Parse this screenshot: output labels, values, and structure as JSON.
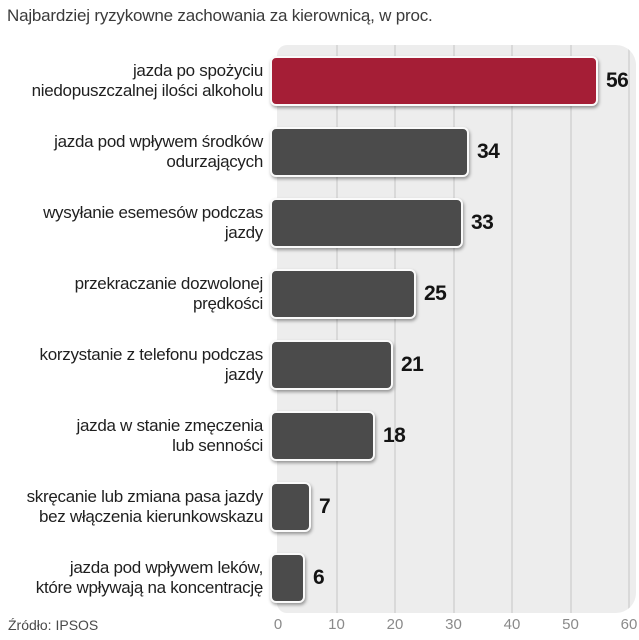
{
  "chart_data": {
    "type": "bar",
    "orientation": "horizontal",
    "title": "Najbardziej ryzykowne zachowania za kierownicą, w proc.",
    "source": "Źródło: IPSOS",
    "xlabel": "",
    "ylabel": "",
    "xlim": [
      0,
      60
    ],
    "x_ticks": [
      0,
      10,
      20,
      30,
      40,
      50,
      60
    ],
    "grid": true,
    "legend": "none",
    "categories": [
      "jazda po spożyciu niedopuszczalnej ilości alkoholu",
      "jazda pod wpływem środków odurzających",
      "wysyłanie esemesów podczas jazdy",
      "przekraczanie dozwolonej prędkości",
      "korzystanie z telefonu podczas jazdy",
      "jazda w stanie zmęczenia lub senności",
      "skręcanie lub zmiana pasa jazdy bez włączenia kierunkowskazu",
      "jazda pod wpływem leków, które wpływają na koncentrację"
    ],
    "values": [
      56,
      34,
      33,
      25,
      21,
      18,
      7,
      6
    ],
    "bars": [
      {
        "label_lines": [
          "jazda po spożyciu",
          "niedopuszczalnej ilości alkoholu"
        ],
        "value": 56,
        "color": "#a51e36"
      },
      {
        "label_lines": [
          "jazda pod wpływem środków",
          "odurzających"
        ],
        "value": 34,
        "color": "#4b4b4b"
      },
      {
        "label_lines": [
          "wysyłanie esemesów podczas",
          "jazdy"
        ],
        "value": 33,
        "color": "#4b4b4b"
      },
      {
        "label_lines": [
          "przekraczanie dozwolonej",
          "prędkości"
        ],
        "value": 25,
        "color": "#4b4b4b"
      },
      {
        "label_lines": [
          "korzystanie z telefonu podczas",
          "jazdy"
        ],
        "value": 21,
        "color": "#4b4b4b"
      },
      {
        "label_lines": [
          "jazda w stanie zmęczenia",
          "lub senności"
        ],
        "value": 18,
        "color": "#4b4b4b"
      },
      {
        "label_lines": [
          "skręcanie lub zmiana pasa jazdy",
          "bez włączenia kierunkowskazu"
        ],
        "value": 7,
        "color": "#4b4b4b"
      },
      {
        "label_lines": [
          "jazda pod wpływem leków,",
          "które wpływają na koncentrację"
        ],
        "value": 6,
        "color": "#4b4b4b"
      }
    ],
    "colors": {
      "highlight_bar": "#a51e36",
      "default_bar": "#4b4b4b",
      "plot_background": "#ededed",
      "gridline": "#d9d9d9",
      "bar_border": "#fafafa",
      "title_text": "#3b3b3b",
      "axis_text": "#8a8a8a",
      "value_text": "#141414"
    }
  }
}
